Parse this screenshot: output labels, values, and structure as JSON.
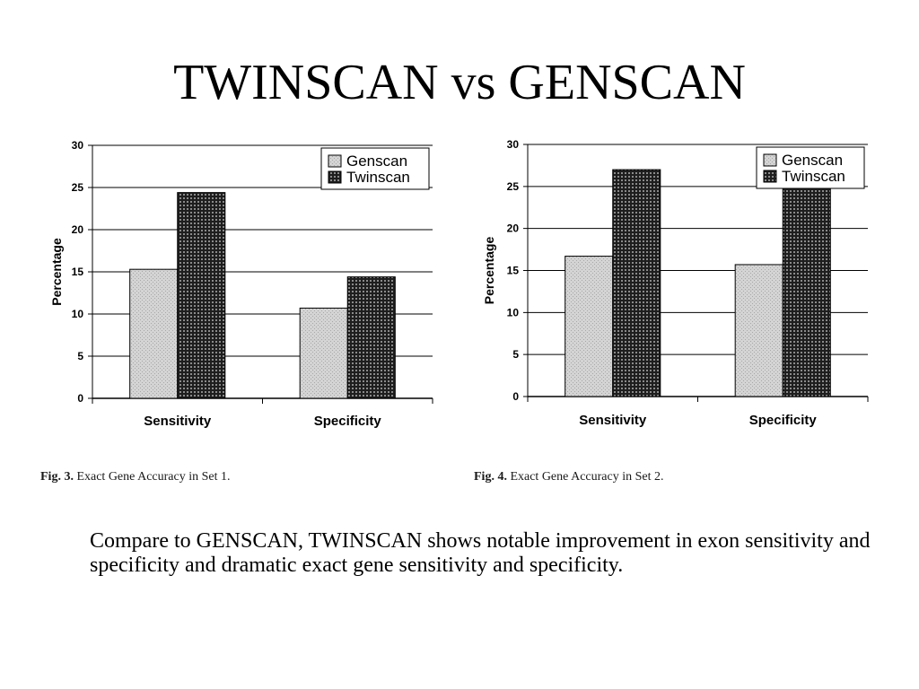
{
  "slide": {
    "title": "TWINSCAN vs GENSCAN",
    "summary": "Compare to GENSCAN, TWINSCAN shows notable improvement in exon sensitivity and specificity and dramatic exact gene sensitivity and specificity."
  },
  "figures": [
    {
      "label": "Fig. 3.",
      "caption": "Exact Gene Accuracy in Set 1."
    },
    {
      "label": "Fig. 4.",
      "caption": "Exact Gene Accuracy in Set 2."
    }
  ],
  "chart_data": [
    {
      "type": "bar",
      "categories": [
        "Sensitivity",
        "Specificity"
      ],
      "series": [
        {
          "name": "Genscan",
          "values": [
            15.3,
            10.7
          ],
          "color": "#d4d4d4"
        },
        {
          "name": "Twinscan",
          "values": [
            24.4,
            14.4
          ],
          "color": "#2a2a2a"
        }
      ],
      "ylabel": "Percentage",
      "ylim": [
        0,
        30
      ],
      "yticks": [
        0,
        5,
        10,
        15,
        20,
        25,
        30
      ],
      "grid": true,
      "legend": "top-right"
    },
    {
      "type": "bar",
      "categories": [
        "Sensitivity",
        "Specificity"
      ],
      "series": [
        {
          "name": "Genscan",
          "values": [
            16.7,
            15.7
          ],
          "color": "#d4d4d4"
        },
        {
          "name": "Twinscan",
          "values": [
            27.0,
            26.0
          ],
          "color": "#2a2a2a"
        }
      ],
      "ylabel": "Percentage",
      "ylim": [
        0,
        30
      ],
      "yticks": [
        0,
        5,
        10,
        15,
        20,
        25,
        30
      ],
      "grid": true,
      "legend": "top-right"
    }
  ]
}
